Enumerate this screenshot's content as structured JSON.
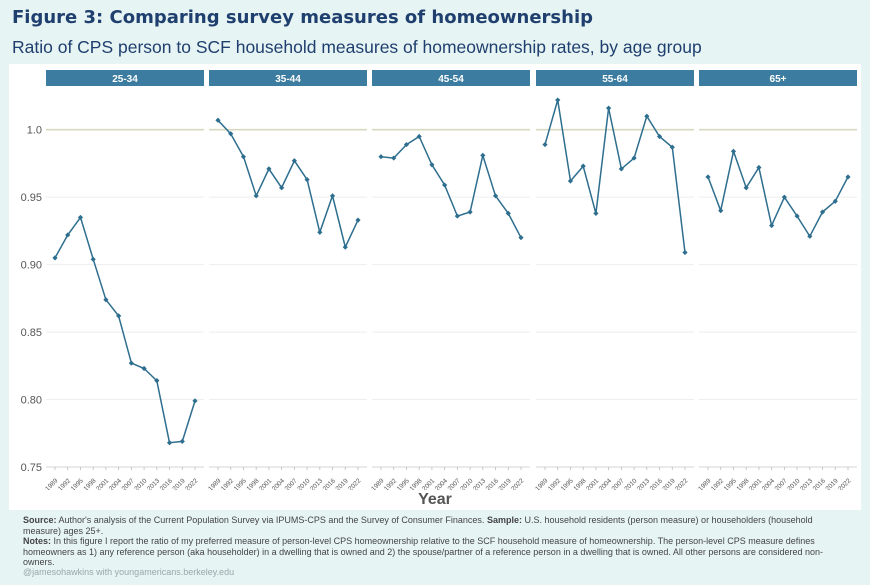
{
  "figure": {
    "title": "Figure 3: Comparing survey measures of homeownership",
    "subtitle": "Ratio of CPS person to SCF household measures of homeownership rates, by age group"
  },
  "chart_data": {
    "type": "line",
    "xlabel": "Year",
    "ylabel": "",
    "ylim": [
      0.75,
      1.025
    ],
    "yticks": [
      "0.75",
      "0.80",
      "0.85",
      "0.90",
      "0.95",
      "1.0"
    ],
    "reference_line": 1.0,
    "line_color": "#2e6e8e",
    "strip_color": "#3c7ca0",
    "background_color": "#e7f4f4",
    "x": [
      1989,
      1992,
      1995,
      1998,
      2001,
      2004,
      2007,
      2010,
      2013,
      2016,
      2019,
      2022
    ],
    "panels": [
      {
        "label": "25-34",
        "values": [
          0.905,
          0.922,
          0.935,
          0.904,
          0.874,
          0.862,
          0.827,
          0.823,
          0.814,
          0.768,
          0.769,
          0.799
        ]
      },
      {
        "label": "35-44",
        "values": [
          1.007,
          0.997,
          0.98,
          0.951,
          0.971,
          0.957,
          0.977,
          0.963,
          0.924,
          0.951,
          0.913,
          0.933
        ]
      },
      {
        "label": "45-54",
        "values": [
          0.98,
          0.979,
          0.989,
          0.995,
          0.974,
          0.959,
          0.936,
          0.939,
          0.981,
          0.951,
          0.938,
          0.92
        ]
      },
      {
        "label": "55-64",
        "values": [
          0.989,
          1.022,
          0.962,
          0.973,
          0.938,
          1.016,
          0.971,
          0.979,
          1.01,
          0.995,
          0.987,
          0.909
        ]
      },
      {
        "label": "65+",
        "values": [
          0.965,
          0.94,
          0.984,
          0.957,
          0.972,
          0.929,
          0.95,
          0.936,
          0.921,
          0.939,
          0.947,
          0.965
        ]
      }
    ]
  },
  "notes": {
    "source_label": "Source:",
    "source_text": " Author's analysis of the Current Population Survey via IPUMS-CPS and the Survey of Consumer Finances. ",
    "sample_label": "Sample:",
    "sample_text": " U.S. household residents (person measure) or householders (household measure) ages 25+.",
    "notes_label": "Notes:",
    "notes_text": " In this figure I report the ratio of my preferred measure of person-level CPS homeownership relative to the SCF household measure of homeownership. The person-level CPS measure defines homeowners as 1) any reference person (aka householder) in a dwelling that is owned and 2) the spouse/partner of a reference person in a dwelling that is owned. All other persons are considered non-owners."
  },
  "credit": "@jamesohawkins with youngamericans.berkeley.edu"
}
